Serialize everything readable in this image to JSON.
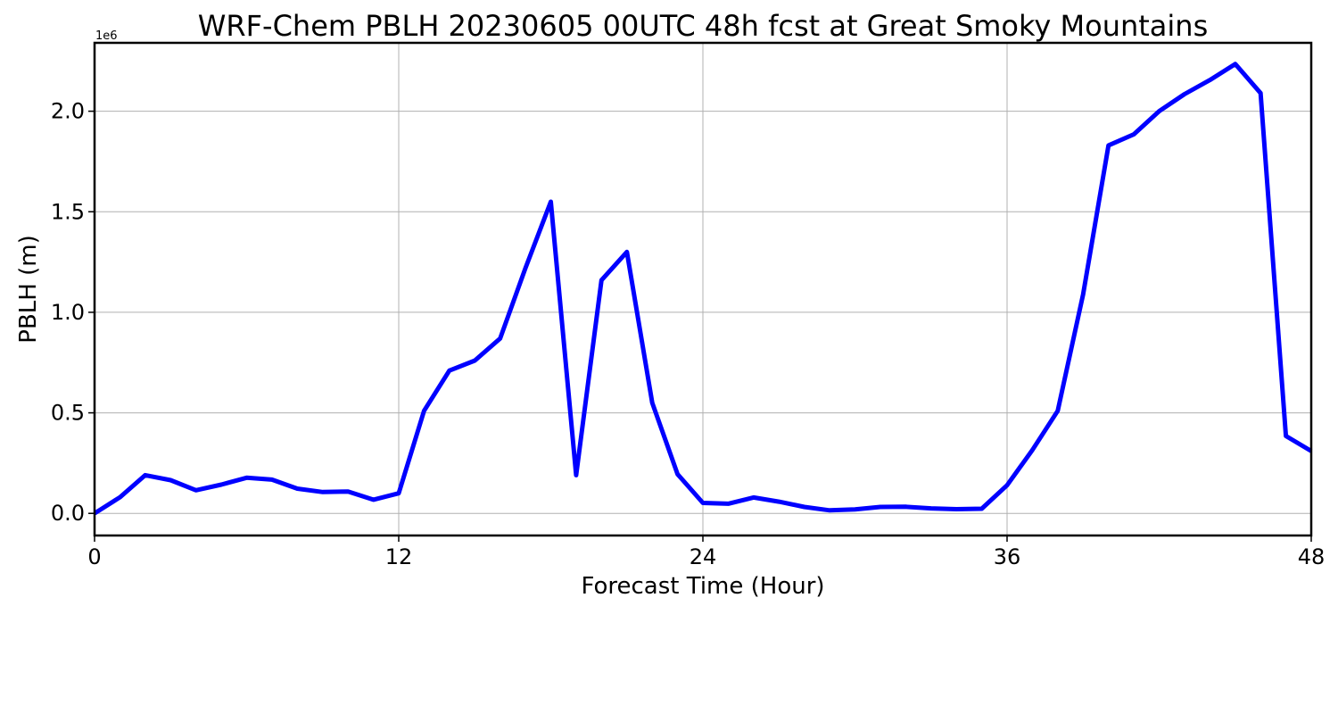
{
  "chart_data": {
    "type": "line",
    "title": "WRF-Chem PBLH  20230605 00UTC 48h fcst at Great Smoky Mountains",
    "xlabel": "Forecast Time (Hour)",
    "ylabel": "PBLH  (m)",
    "y_offset_label": "1e6",
    "xlim": [
      0,
      48
    ],
    "ylim": [
      -0.11,
      2.34
    ],
    "x_ticks": [
      0,
      12,
      24,
      36,
      48
    ],
    "x_tick_labels": [
      "0",
      "12",
      "24",
      "36",
      "48"
    ],
    "y_ticks": [
      0.0,
      0.5,
      1.0,
      1.5,
      2.0
    ],
    "y_tick_labels": [
      "0.0",
      "0.5",
      "1.0",
      "1.5",
      "2.0"
    ],
    "grid": true,
    "series": [
      {
        "color": "#0000ff",
        "x": [
          0,
          1,
          2,
          3,
          4,
          5,
          6,
          7,
          8,
          9,
          10,
          11,
          12,
          13,
          14,
          15,
          16,
          17,
          18,
          19,
          20,
          21,
          22,
          23,
          24,
          25,
          26,
          27,
          28,
          29,
          30,
          31,
          32,
          33,
          34,
          35,
          36,
          37,
          38,
          39,
          40,
          41,
          42,
          43,
          44,
          45,
          46,
          47,
          48
        ],
        "y": [
          0.0,
          0.08,
          0.19,
          0.165,
          0.115,
          0.143,
          0.177,
          0.168,
          0.123,
          0.106,
          0.109,
          0.068,
          0.1,
          0.51,
          0.71,
          0.76,
          0.87,
          1.22,
          1.55,
          0.19,
          1.16,
          1.3,
          0.55,
          0.195,
          0.052,
          0.048,
          0.079,
          0.058,
          0.032,
          0.015,
          0.02,
          0.032,
          0.033,
          0.025,
          0.021,
          0.023,
          0.14,
          0.315,
          0.51,
          1.09,
          1.83,
          1.885,
          2.0,
          2.085,
          2.155,
          2.235,
          2.09,
          0.385,
          0.31
        ]
      }
    ]
  }
}
